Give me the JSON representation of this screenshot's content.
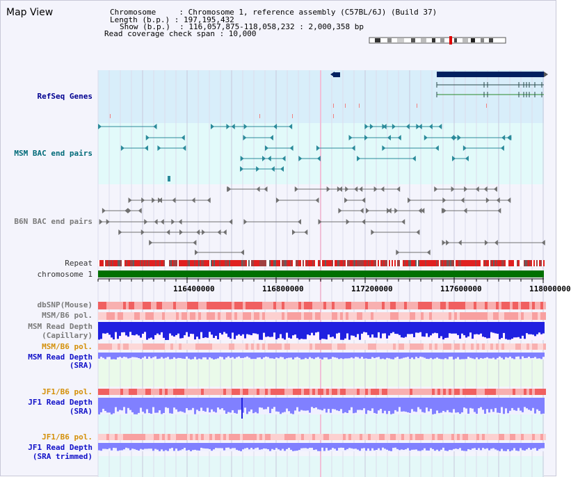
{
  "title": "Map View",
  "header": {
    "chromosome_row": "Chromosome     : Chromosome 1, reference assembly (C57BL/6J) (Build 37)",
    "length_row": "Length (b.p.) : 197,195,432",
    "show_row": "Show (b.p.)  : 116,057,875-118,058,232 : 2,000,358 bp",
    "coverage_row": "Read coverage check span : 10,000"
  },
  "tracks": {
    "refseq": "RefSeq Genes",
    "msm_bac": "MSM BAC end pairs",
    "b6n_bac": "B6N BAC end pairs",
    "repeat": "Repeat",
    "chromosome": "chromosome 1",
    "dbsnp": "dbSNP(Mouse)",
    "msm_b6_pol_1": "MSM/B6 pol.",
    "msm_read_cap_1": "MSM Read Depth",
    "msm_read_cap_2": "(Capillary)",
    "msm_b6_pol_2": "MSM/B6 pol.",
    "msm_read_sra_1": "MSM Read Depth",
    "msm_read_sra_2": "(SRA)",
    "jf1_b6_pol_1": "JF1/B6 pol.",
    "jf1_read_sra_1": "JF1 Read Depth",
    "jf1_read_sra_2": "(SRA)",
    "jf1_b6_pol_2": "JF1/B6 pol.",
    "jf1_read_trim_1": "JF1 Read Depth",
    "jf1_read_trim_2": "(SRA trimmed)"
  },
  "axis_ticks": [
    "116400000",
    "116800000",
    "117200000",
    "117600000",
    "118000000"
  ],
  "colors": {
    "refseq_bg": "#d8eefa",
    "msm_bg": "#e2fafa",
    "gene_dark": "#002060",
    "bac_teal": "#2a8a9a",
    "bac_gray": "#707070",
    "repeat_red": "#e02020",
    "chrom_green": "#007000",
    "depth_blue": "#2020e0",
    "depth_light": "#8080ff",
    "pol_red": "#f04040",
    "sra_bg": "#eafaea",
    "jf1_bg": "#e4f8f8"
  }
}
